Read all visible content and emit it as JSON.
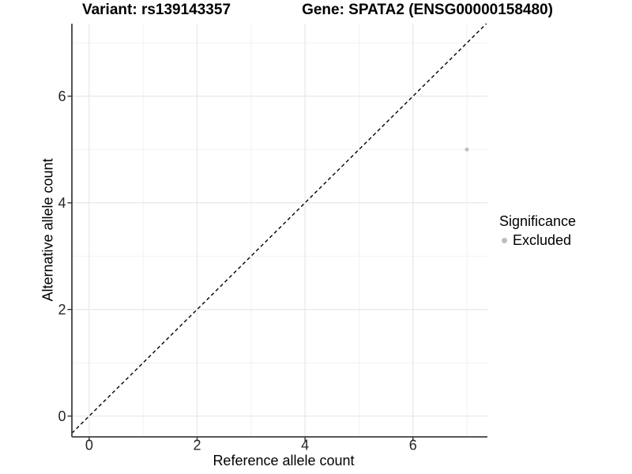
{
  "figure": {
    "title_left": "Variant: rs139143357",
    "title_right": "Gene: SPATA2 (ENSG00000158480)"
  },
  "chart_data": {
    "type": "scatter",
    "title": "Variant: rs139143357    Gene: SPATA2 (ENSG00000158480)",
    "xlabel": "Reference allele count",
    "ylabel": "Alternative allele count",
    "xlim": [
      -0.32,
      7.38
    ],
    "ylim": [
      -0.39,
      7.36
    ],
    "xticks": [
      0,
      2,
      4,
      6
    ],
    "yticks": [
      0,
      2,
      4,
      6
    ],
    "minor_xticks": [
      1,
      3,
      5,
      7
    ],
    "minor_yticks": [
      1,
      3,
      5,
      7
    ],
    "grid": "on",
    "reference_line": {
      "kind": "identity y=x",
      "style": "dashed",
      "color": "#000000"
    },
    "series": [
      {
        "name": "Excluded",
        "color": "#bebebe",
        "points": [
          [
            7,
            5
          ]
        ]
      }
    ],
    "legend": {
      "title": "Significance",
      "position": "right",
      "entries": [
        {
          "label": "Excluded",
          "color": "#bebebe",
          "marker": "circle"
        }
      ]
    },
    "colors": {
      "background": "#ffffff",
      "axis_line": "#404040",
      "tick_mark": "#333333",
      "tick_text": "#262626",
      "grid_major": "#e7e7e7",
      "grid_minor": "#f1f1f1",
      "point": "#bebebe"
    }
  }
}
